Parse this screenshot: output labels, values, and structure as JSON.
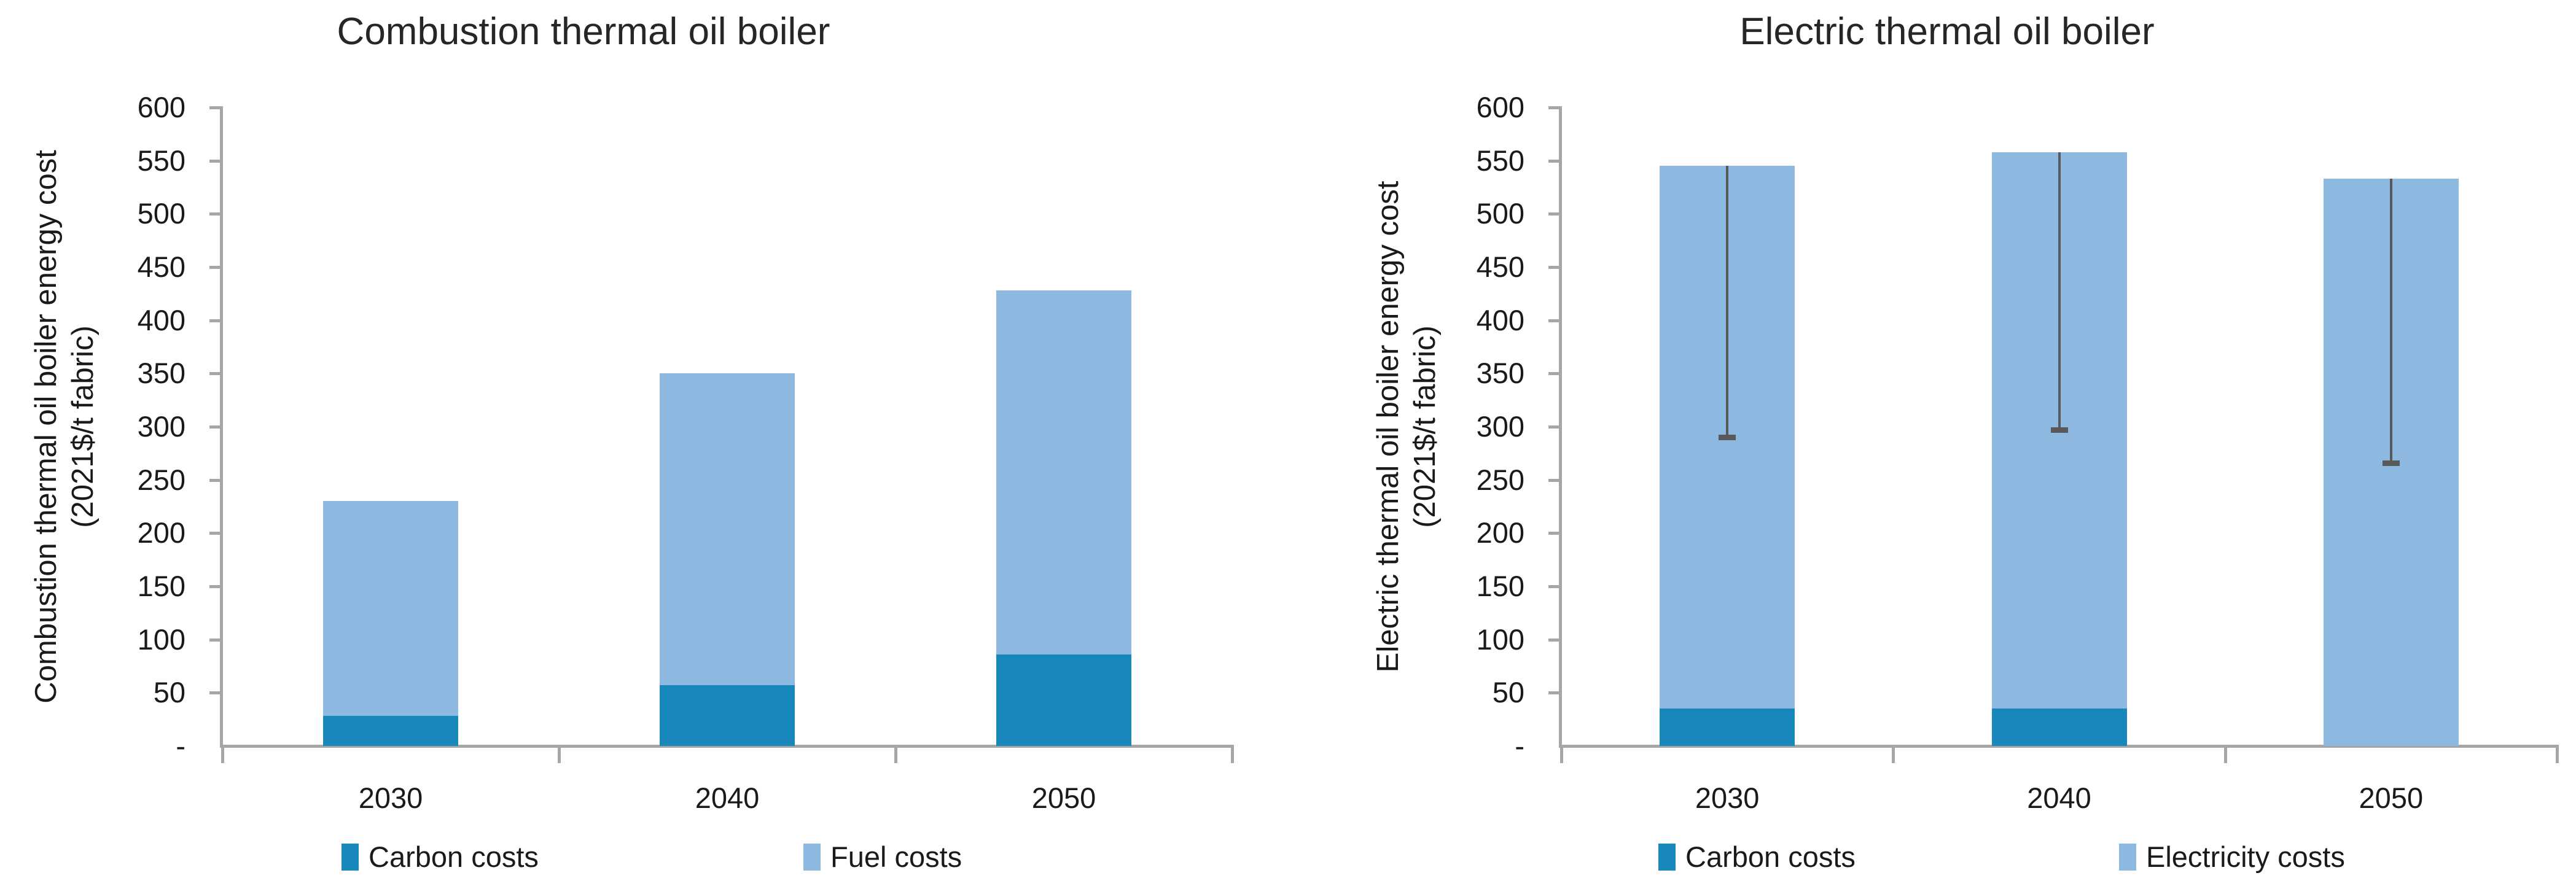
{
  "chart_data": [
    {
      "type": "bar",
      "stacked": true,
      "title": "Combustion thermal oil boiler",
      "xlabel": "",
      "ylabel": "Combustion thermal oil boiler energy cost (2021$/t fabric)",
      "ylabel_lines": [
        "Combustion thermal oil boiler energy cost",
        "(2021$/t fabric)"
      ],
      "categories": [
        "2030",
        "2040",
        "2050"
      ],
      "series": [
        {
          "name": "Carbon costs",
          "color": "#1787bc",
          "values": [
            28,
            57,
            86
          ]
        },
        {
          "name": "Fuel costs",
          "color": "#8db9e0",
          "values": [
            202,
            293,
            342
          ]
        }
      ],
      "totals": [
        230,
        350,
        428
      ],
      "error_bars_low": null,
      "ylim": [
        0,
        600
      ],
      "y_tick_step": 50,
      "y_tick_labels": [
        "600",
        "550",
        "500",
        "450",
        "400",
        "350",
        "300",
        "250",
        "200",
        "150",
        "100",
        "50",
        "-"
      ],
      "grid": false,
      "legend_position": "bottom"
    },
    {
      "type": "bar",
      "stacked": true,
      "title": "Electric thermal oil boiler",
      "xlabel": "",
      "ylabel": "Electric thermal oil boiler energy cost (2021$/t fabric)",
      "ylabel_lines": [
        "Electric thermal oil boiler energy cost",
        "(2021$/t fabric)"
      ],
      "categories": [
        "2030",
        "2040",
        "2050"
      ],
      "series": [
        {
          "name": "Carbon costs",
          "color": "#1787bc",
          "values": [
            35,
            35,
            0
          ]
        },
        {
          "name": "Electricity costs",
          "color": "#8db9e0",
          "values": [
            510,
            523,
            533
          ]
        }
      ],
      "totals": [
        545,
        558,
        533
      ],
      "error_bars_low": [
        290,
        297,
        266
      ],
      "ylim": [
        0,
        600
      ],
      "y_tick_step": 50,
      "y_tick_labels": [
        "600",
        "550",
        "500",
        "450",
        "400",
        "350",
        "300",
        "250",
        "200",
        "150",
        "100",
        "50",
        "-"
      ],
      "grid": false,
      "legend_position": "bottom"
    }
  ],
  "colors": {
    "carbon": "#1787bc",
    "light_blue": "#8db9e0",
    "axis_gray": "#a6a6a6",
    "error_bar_gray": "#595959",
    "text": "#1a1a1a"
  }
}
